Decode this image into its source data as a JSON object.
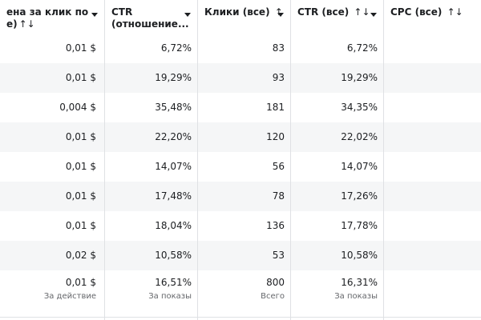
{
  "columns": [
    {
      "line1": "ена за клик по",
      "line2": "е)",
      "sort": "↑↓",
      "dropdown": true
    },
    {
      "line1": "CTR",
      "line2": "(отношение...",
      "sort": "",
      "dropdown": true
    },
    {
      "line1": "Клики (все)",
      "line2": "",
      "sort": "↑↓",
      "dropdown": true
    },
    {
      "line1": "CTR (все)",
      "line2": "",
      "sort": "↑↓",
      "dropdown": true
    },
    {
      "line1": "CPC (все)",
      "line2": "",
      "sort": "↑↓",
      "dropdown": false
    }
  ],
  "rows": [
    [
      "0,01 $",
      "6,72%",
      "83",
      "6,72%",
      ""
    ],
    [
      "0,01 $",
      "19,29%",
      "93",
      "19,29%",
      ""
    ],
    [
      "0,004 $",
      "35,48%",
      "181",
      "34,35%",
      ""
    ],
    [
      "0,01 $",
      "22,20%",
      "120",
      "22,02%",
      ""
    ],
    [
      "0,01 $",
      "14,07%",
      "56",
      "14,07%",
      ""
    ],
    [
      "0,01 $",
      "17,48%",
      "78",
      "17,26%",
      ""
    ],
    [
      "0,01 $",
      "18,04%",
      "136",
      "17,78%",
      ""
    ],
    [
      "0,02 $",
      "10,58%",
      "53",
      "10,58%",
      ""
    ]
  ],
  "totals": {
    "values": [
      "0,01 $",
      "16,51%",
      "800",
      "16,31%",
      ""
    ],
    "subs": [
      "За действие",
      "За показы",
      "Всего",
      "За показы",
      ""
    ]
  },
  "colors": {
    "border": "#dfe1e4",
    "zebra": "#f5f6f7",
    "subtext": "#65676b"
  }
}
